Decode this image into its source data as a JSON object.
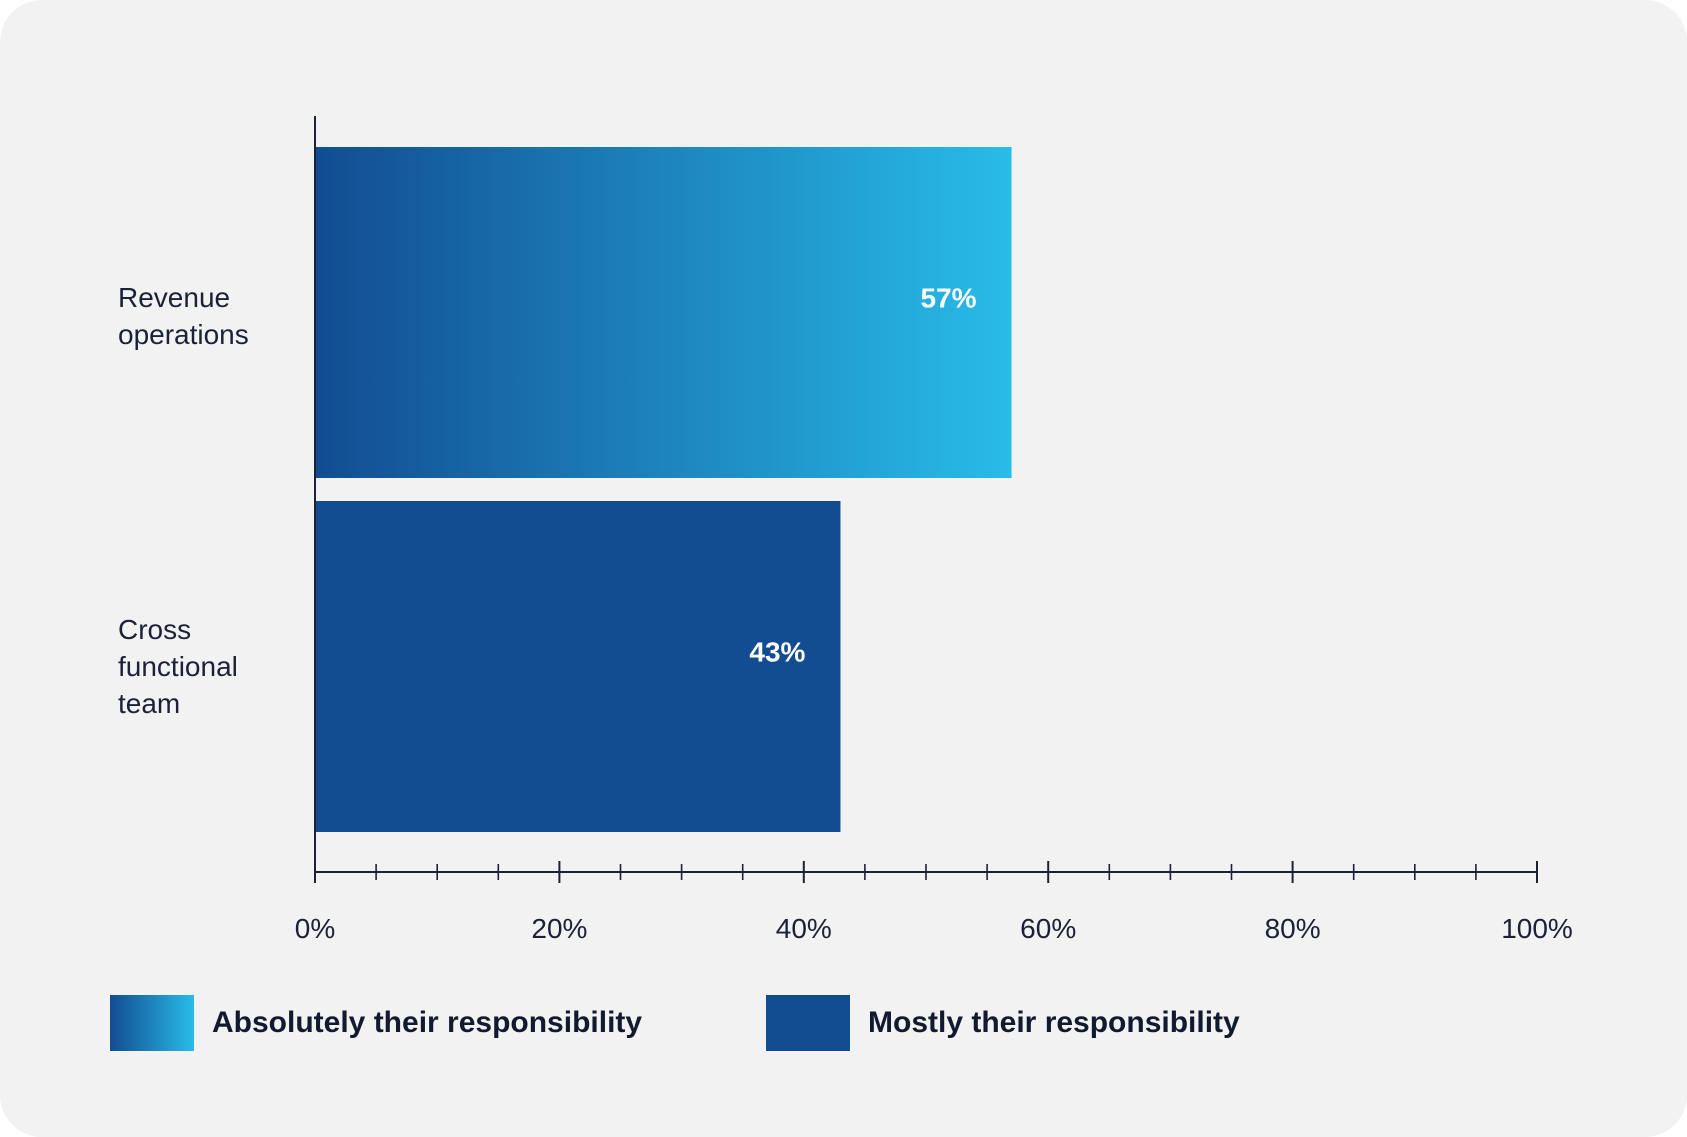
{
  "chart_data": {
    "type": "bar",
    "orientation": "horizontal",
    "categories": [
      "Revenue operations",
      "Cross functional team"
    ],
    "category_lines": [
      [
        "Revenue",
        "operations"
      ],
      [
        "Cross",
        "functional",
        "team"
      ]
    ],
    "series": [
      {
        "name": "Absolutely their responsibility",
        "values": [
          57,
          null
        ],
        "color_start": "#124c91",
        "color_end": "#28bce9"
      },
      {
        "name": "Mostly their responsibility",
        "values": [
          null,
          43
        ],
        "color": "#124d91"
      }
    ],
    "data_labels": [
      "57%",
      "43%"
    ],
    "xlim": [
      0,
      100
    ],
    "xticks": [
      0,
      20,
      40,
      60,
      80,
      100
    ],
    "xtick_labels": [
      "0%",
      "20%",
      "40%",
      "60%",
      "80%",
      "100%"
    ],
    "minor_tick_step": 5,
    "title": "",
    "xlabel": "",
    "ylabel": "",
    "legend_position": "bottom"
  },
  "legend": {
    "items": [
      {
        "label": "Absolutely their responsibility"
      },
      {
        "label": "Mostly their responsibility"
      }
    ]
  },
  "colors": {
    "background": "#f2f2f2",
    "axis": "#1b2138",
    "text": "#1b2138"
  }
}
